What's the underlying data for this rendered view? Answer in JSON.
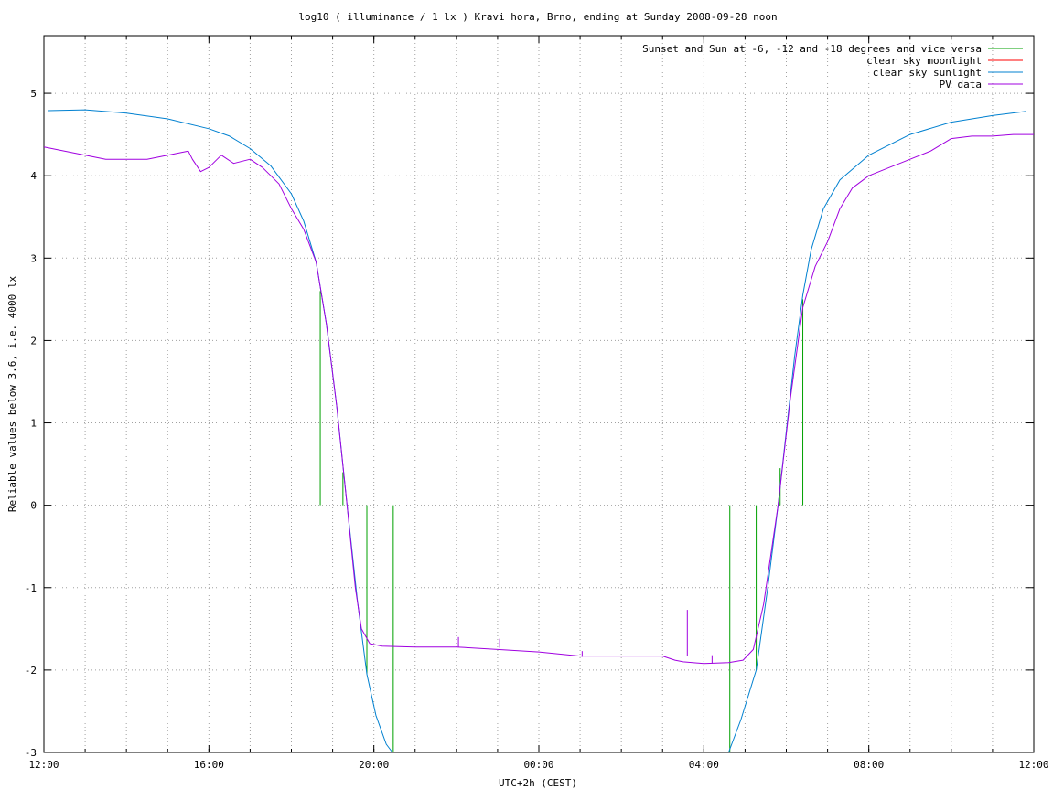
{
  "chart_data": {
    "type": "line",
    "title": "log10 ( illuminance / 1 lx ) Kravi hora, Brno, ending at Sunday 2008-09-28 noon",
    "xlabel": "UTC+2h (CEST)",
    "ylabel": "Reliable values below 3.6, i.e. 4000 lx",
    "xlim": [
      12,
      36
    ],
    "ylim": [
      -3,
      5.7
    ],
    "grid": true,
    "legend_position": "top-right",
    "x_ticks": [
      {
        "value": 12,
        "label": "12:00"
      },
      {
        "value": 16,
        "label": "16:00"
      },
      {
        "value": 20,
        "label": "20:00"
      },
      {
        "value": 24,
        "label": "00:00"
      },
      {
        "value": 28,
        "label": "04:00"
      },
      {
        "value": 32,
        "label": "08:00"
      },
      {
        "value": 36,
        "label": "12:00"
      }
    ],
    "x_minor_step": 1,
    "y_ticks": [
      -3,
      -2,
      -1,
      0,
      1,
      2,
      3,
      4,
      5
    ],
    "sun_markers": [
      {
        "x": 18.7,
        "y0": 0,
        "y1": 2.6
      },
      {
        "x": 19.25,
        "y0": 0,
        "y1": 0.4
      },
      {
        "x": 19.83,
        "y0": -2.05,
        "y1": 0
      },
      {
        "x": 20.47,
        "y0": -3,
        "y1": 0
      },
      {
        "x": 28.63,
        "y0": -3,
        "y1": 0
      },
      {
        "x": 29.27,
        "y0": -2.0,
        "y1": 0
      },
      {
        "x": 29.85,
        "y0": 0,
        "y1": 0.45
      },
      {
        "x": 30.4,
        "y0": 0,
        "y1": 2.5
      }
    ],
    "series": [
      {
        "name": "Sunset and Sun at -6, -12 and -18 degrees and vice versa",
        "color": "#00a000",
        "kind": "sun_markers"
      },
      {
        "name": "clear sky moonlight",
        "color": "#ff0000",
        "points": []
      },
      {
        "name": "clear sky sunlight",
        "color": "#0080d0",
        "points": [
          [
            12.1,
            4.79
          ],
          [
            13.0,
            4.8
          ],
          [
            14.0,
            4.76
          ],
          [
            15.0,
            4.69
          ],
          [
            16.0,
            4.57
          ],
          [
            16.5,
            4.48
          ],
          [
            17.0,
            4.33
          ],
          [
            17.5,
            4.12
          ],
          [
            18.0,
            3.78
          ],
          [
            18.3,
            3.45
          ],
          [
            18.6,
            2.95
          ],
          [
            18.85,
            2.2
          ],
          [
            19.1,
            1.2
          ],
          [
            19.35,
            0.0
          ],
          [
            19.6,
            -1.15
          ],
          [
            19.83,
            -2.05
          ],
          [
            20.05,
            -2.55
          ],
          [
            20.3,
            -2.9
          ],
          [
            20.45,
            -3.0
          ]
        ]
      },
      {
        "name": "clear sky sunlight (morning)",
        "color": "#0080d0",
        "points": [
          [
            28.6,
            -3.0
          ],
          [
            28.9,
            -2.6
          ],
          [
            29.27,
            -2.0
          ],
          [
            29.55,
            -1.0
          ],
          [
            29.8,
            0.0
          ],
          [
            30.0,
            0.9
          ],
          [
            30.2,
            1.8
          ],
          [
            30.4,
            2.55
          ],
          [
            30.6,
            3.1
          ],
          [
            30.9,
            3.6
          ],
          [
            31.3,
            3.95
          ],
          [
            32.0,
            4.25
          ],
          [
            33.0,
            4.5
          ],
          [
            34.0,
            4.65
          ],
          [
            35.0,
            4.73
          ],
          [
            35.8,
            4.78
          ]
        ]
      },
      {
        "name": "PV data",
        "color": "#a000e0",
        "points": [
          [
            12.0,
            4.35
          ],
          [
            12.5,
            4.3
          ],
          [
            13.0,
            4.25
          ],
          [
            13.5,
            4.2
          ],
          [
            14.0,
            4.2
          ],
          [
            14.5,
            4.2
          ],
          [
            15.0,
            4.25
          ],
          [
            15.5,
            4.3
          ],
          [
            15.6,
            4.2
          ],
          [
            15.8,
            4.05
          ],
          [
            16.0,
            4.1
          ],
          [
            16.3,
            4.25
          ],
          [
            16.6,
            4.15
          ],
          [
            17.0,
            4.2
          ],
          [
            17.3,
            4.1
          ],
          [
            17.5,
            4.0
          ],
          [
            17.7,
            3.9
          ],
          [
            18.0,
            3.6
          ],
          [
            18.3,
            3.35
          ],
          [
            18.6,
            2.95
          ],
          [
            18.85,
            2.2
          ],
          [
            19.1,
            1.2
          ],
          [
            19.35,
            0.0
          ],
          [
            19.55,
            -1.0
          ],
          [
            19.7,
            -1.5
          ],
          [
            19.9,
            -1.68
          ],
          [
            20.2,
            -1.71
          ],
          [
            21.0,
            -1.72
          ],
          [
            22.0,
            -1.72
          ],
          [
            23.0,
            -1.75
          ],
          [
            24.0,
            -1.78
          ],
          [
            25.0,
            -1.83
          ],
          [
            26.0,
            -1.83
          ],
          [
            27.0,
            -1.83
          ],
          [
            27.3,
            -1.88
          ],
          [
            27.5,
            -1.9
          ],
          [
            28.0,
            -1.92
          ],
          [
            28.6,
            -1.91
          ],
          [
            28.95,
            -1.88
          ],
          [
            29.2,
            -1.75
          ],
          [
            29.45,
            -1.2
          ],
          [
            29.8,
            0.0
          ],
          [
            30.1,
            1.3
          ],
          [
            30.4,
            2.4
          ],
          [
            30.7,
            2.9
          ],
          [
            31.0,
            3.2
          ],
          [
            31.3,
            3.6
          ],
          [
            31.6,
            3.85
          ],
          [
            32.0,
            4.0
          ],
          [
            32.5,
            4.1
          ],
          [
            33.0,
            4.2
          ],
          [
            33.5,
            4.3
          ],
          [
            34.0,
            4.45
          ],
          [
            34.5,
            4.48
          ],
          [
            35.0,
            4.48
          ],
          [
            35.5,
            4.5
          ],
          [
            36.0,
            4.5
          ]
        ]
      }
    ],
    "legend": [
      {
        "label": "Sunset and Sun at -6, -12 and -18 degrees and vice versa",
        "color": "#00a000"
      },
      {
        "label": "clear sky moonlight",
        "color": "#ff0000"
      },
      {
        "label": "clear sky sunlight",
        "color": "#0080d0"
      },
      {
        "label": "PV data",
        "color": "#a000e0"
      }
    ],
    "spikes": [
      {
        "x": 22.05,
        "y0": -1.72,
        "y1": -1.6
      },
      {
        "x": 23.05,
        "y0": -1.73,
        "y1": -1.62
      },
      {
        "x": 25.05,
        "y0": -1.84,
        "y1": -1.77
      },
      {
        "x": 27.6,
        "y0": -1.83,
        "y1": -1.27
      },
      {
        "x": 28.2,
        "y0": -1.92,
        "y1": -1.82
      }
    ]
  }
}
